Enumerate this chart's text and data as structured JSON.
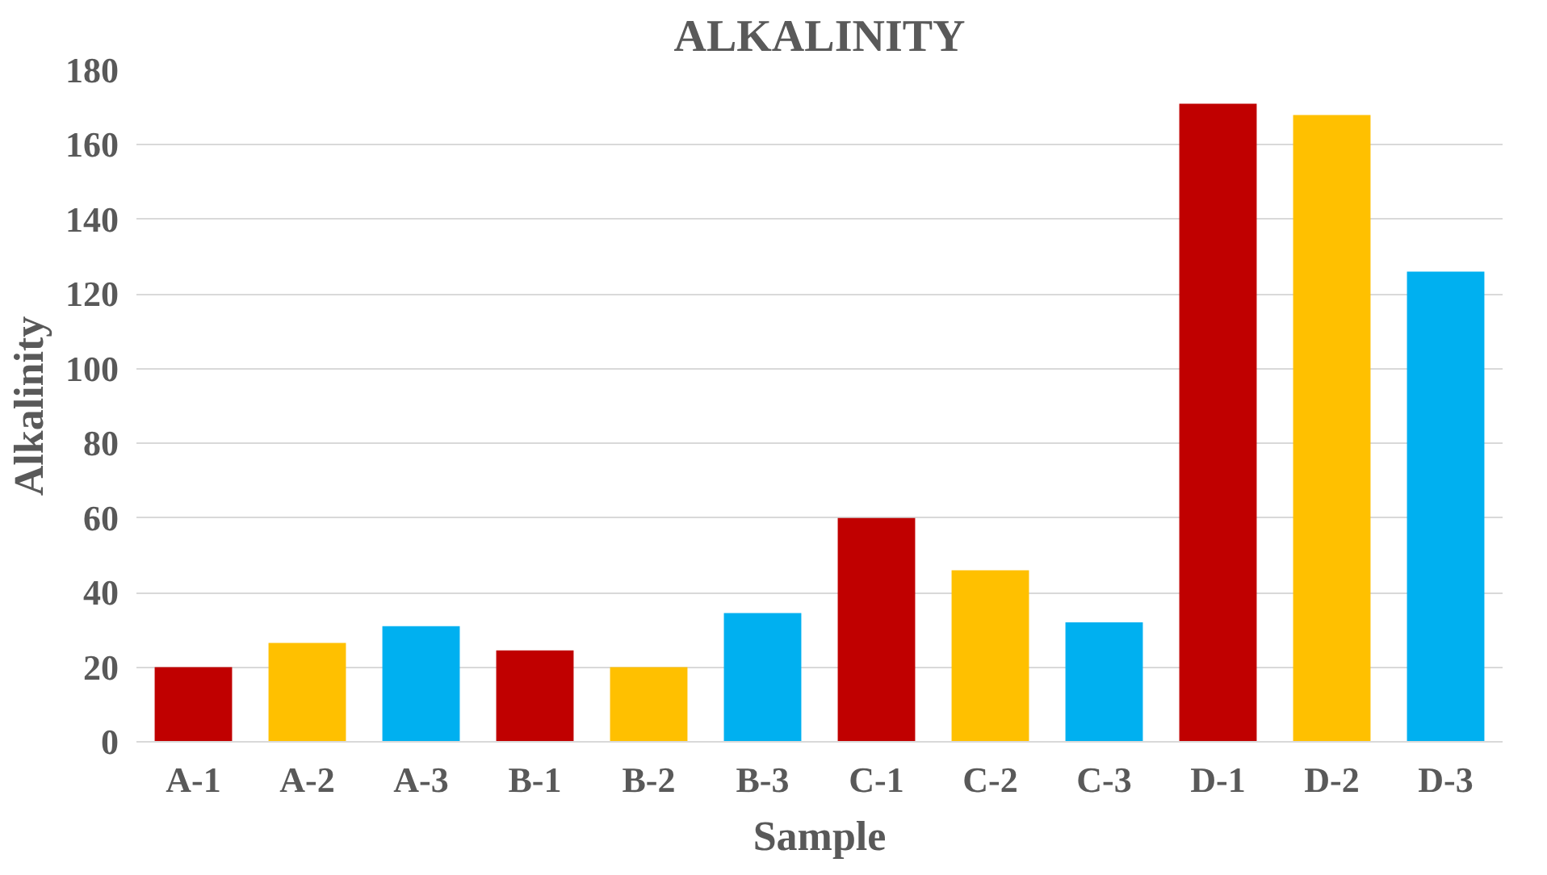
{
  "chart_data": {
    "type": "bar",
    "title": "ALKALINITY",
    "xlabel": "Sample",
    "ylabel": "Alkalinity",
    "categories": [
      "A-1",
      "A-2",
      "A-3",
      "B-1",
      "B-2",
      "B-3",
      "C-1",
      "C-2",
      "C-3",
      "D-1",
      "D-2",
      "D-3"
    ],
    "values": [
      20,
      26.5,
      31,
      24.5,
      20,
      34.5,
      60,
      46,
      32,
      171,
      168,
      126
    ],
    "colors": [
      "#c00000",
      "#ffc000",
      "#00b0f0",
      "#c00000",
      "#ffc000",
      "#00b0f0",
      "#c00000",
      "#ffc000",
      "#00b0f0",
      "#c00000",
      "#ffc000",
      "#00b0f0"
    ],
    "ylim": [
      0,
      180
    ],
    "yticks": [
      0,
      20,
      40,
      60,
      80,
      100,
      120,
      140,
      160,
      180
    ],
    "grid": "y"
  }
}
